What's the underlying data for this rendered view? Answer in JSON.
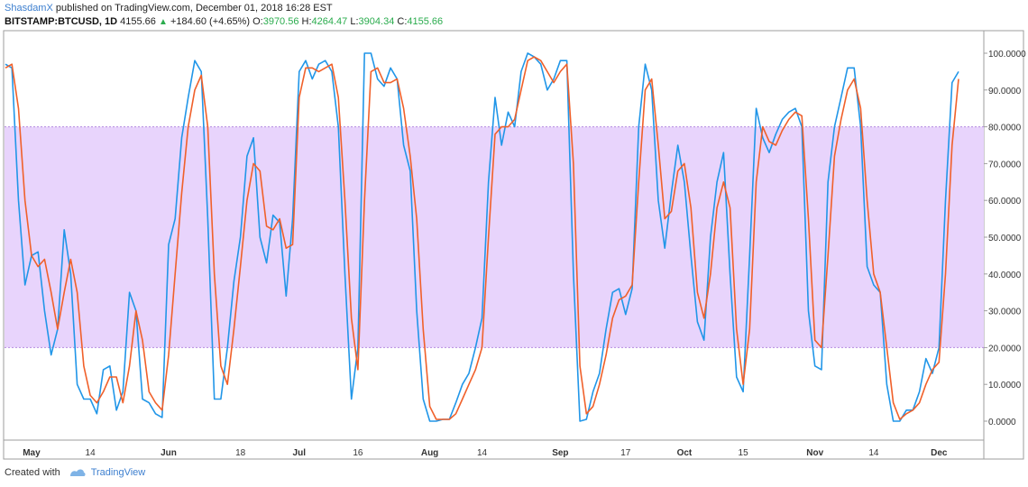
{
  "header": {
    "author": "ShasdamX",
    "published": "published on TradingView.com, December 01, 2018 16:28 EST",
    "symbol": "BITSTAMP:BTCUSD, 1D",
    "last": "4155.66",
    "change_arrow": "▲",
    "change": "+184.60 (+4.65%)",
    "o_label": "O:",
    "o_value": "3970.56",
    "h_label": "H:",
    "h_value": "4264.47",
    "l_label": "L:",
    "l_value": "3904.34",
    "c_label": "C:",
    "c_value": "4155.66"
  },
  "footer": {
    "created_with": "Created with",
    "brand": "TradingView"
  },
  "colors": {
    "k_line": "#2196e8",
    "d_line": "#f0602a",
    "band_fill": "#e8d4fc",
    "band_border": "#b48ae0",
    "accent_green": "#2bac4e",
    "link_blue": "#3d7fcf"
  },
  "chart_data": {
    "type": "line",
    "title": "",
    "xlabel": "",
    "ylabel": "",
    "ylim": [
      -5,
      105
    ],
    "grid": false,
    "band": [
      20,
      80
    ],
    "x_ticks": [
      {
        "day": 4,
        "label": "May"
      },
      {
        "day": 13,
        "label": "14"
      },
      {
        "day": 25,
        "label": "Jun"
      },
      {
        "day": 36,
        "label": "18"
      },
      {
        "day": 45,
        "label": "Jul"
      },
      {
        "day": 54,
        "label": "16"
      },
      {
        "day": 65,
        "label": "Aug"
      },
      {
        "day": 73,
        "label": "14"
      },
      {
        "day": 85,
        "label": "Sep"
      },
      {
        "day": 95,
        "label": "17"
      },
      {
        "day": 104,
        "label": "Oct"
      },
      {
        "day": 113,
        "label": "15"
      },
      {
        "day": 124,
        "label": "Nov"
      },
      {
        "day": 133,
        "label": "14"
      },
      {
        "day": 143,
        "label": "Dec"
      }
    ],
    "y_ticks": [
      {
        "value": 0,
        "label": "0.0000"
      },
      {
        "value": 10,
        "label": "10.0000"
      },
      {
        "value": 20,
        "label": "20.0000"
      },
      {
        "value": 30,
        "label": "30.0000"
      },
      {
        "value": 40,
        "label": "40.0000"
      },
      {
        "value": 50,
        "label": "50.0000"
      },
      {
        "value": 60,
        "label": "60.0000"
      },
      {
        "value": 70,
        "label": "70.0000"
      },
      {
        "value": 80,
        "label": "80.0000"
      },
      {
        "value": 90,
        "label": "90.0000"
      },
      {
        "value": 100,
        "label": "100.0000"
      }
    ],
    "x_range": [
      0,
      146
    ],
    "series": [
      {
        "points": [
          [
            0,
            97
          ],
          [
            1,
            96
          ],
          [
            2,
            60
          ],
          [
            3,
            37
          ],
          [
            4,
            45
          ],
          [
            5,
            46
          ],
          [
            6,
            30
          ],
          [
            7,
            18
          ],
          [
            8,
            25
          ],
          [
            9,
            52
          ],
          [
            10,
            40
          ],
          [
            11,
            10
          ],
          [
            12,
            6
          ],
          [
            13,
            6
          ],
          [
            14,
            2
          ],
          [
            15,
            14
          ],
          [
            16,
            15
          ],
          [
            17,
            3
          ],
          [
            18,
            8
          ],
          [
            19,
            35
          ],
          [
            20,
            30
          ],
          [
            21,
            6
          ],
          [
            22,
            5
          ],
          [
            23,
            2
          ],
          [
            24,
            1
          ],
          [
            25,
            48
          ],
          [
            26,
            55
          ],
          [
            27,
            77
          ],
          [
            28,
            88
          ],
          [
            29,
            98
          ],
          [
            30,
            95
          ],
          [
            31,
            55
          ],
          [
            32,
            6
          ],
          [
            33,
            6
          ],
          [
            34,
            20
          ],
          [
            35,
            38
          ],
          [
            36,
            50
          ],
          [
            37,
            72
          ],
          [
            38,
            77
          ],
          [
            39,
            50
          ],
          [
            40,
            43
          ],
          [
            41,
            56
          ],
          [
            42,
            54
          ],
          [
            43,
            34
          ],
          [
            44,
            55
          ],
          [
            45,
            95
          ],
          [
            46,
            98
          ],
          [
            47,
            93
          ],
          [
            48,
            97
          ],
          [
            49,
            98
          ],
          [
            50,
            95
          ],
          [
            51,
            80
          ],
          [
            52,
            40
          ],
          [
            53,
            6
          ],
          [
            54,
            20
          ],
          [
            55,
            100
          ],
          [
            56,
            100
          ],
          [
            57,
            93
          ],
          [
            58,
            91
          ],
          [
            59,
            96
          ],
          [
            60,
            93
          ],
          [
            61,
            75
          ],
          [
            62,
            68
          ],
          [
            63,
            30
          ],
          [
            64,
            6
          ],
          [
            65,
            0
          ],
          [
            66,
            0
          ],
          [
            67,
            0.5
          ],
          [
            68,
            0.5
          ],
          [
            69,
            5
          ],
          [
            70,
            10
          ],
          [
            71,
            13
          ],
          [
            72,
            20
          ],
          [
            73,
            28
          ],
          [
            74,
            65
          ],
          [
            75,
            88
          ],
          [
            76,
            75
          ],
          [
            77,
            84
          ],
          [
            78,
            80
          ],
          [
            79,
            95
          ],
          [
            80,
            100
          ],
          [
            81,
            99
          ],
          [
            82,
            97
          ],
          [
            83,
            90
          ],
          [
            84,
            93
          ],
          [
            85,
            98
          ],
          [
            86,
            98
          ],
          [
            87,
            40
          ],
          [
            88,
            0
          ],
          [
            89,
            0.5
          ],
          [
            90,
            8
          ],
          [
            91,
            13
          ],
          [
            92,
            25
          ],
          [
            93,
            35
          ],
          [
            94,
            36
          ],
          [
            95,
            29
          ],
          [
            96,
            36
          ],
          [
            97,
            80
          ],
          [
            98,
            97
          ],
          [
            99,
            90
          ],
          [
            100,
            60
          ],
          [
            101,
            47
          ],
          [
            102,
            62
          ],
          [
            103,
            75
          ],
          [
            104,
            65
          ],
          [
            105,
            45
          ],
          [
            106,
            27
          ],
          [
            107,
            22
          ],
          [
            108,
            50
          ],
          [
            109,
            65
          ],
          [
            110,
            73
          ],
          [
            111,
            40
          ],
          [
            112,
            12
          ],
          [
            113,
            8
          ],
          [
            114,
            45
          ],
          [
            115,
            85
          ],
          [
            116,
            77
          ],
          [
            117,
            73
          ],
          [
            118,
            78
          ],
          [
            119,
            82
          ],
          [
            120,
            84
          ],
          [
            121,
            85
          ],
          [
            122,
            80
          ],
          [
            123,
            30
          ],
          [
            124,
            15
          ],
          [
            125,
            14
          ],
          [
            126,
            65
          ],
          [
            127,
            80
          ],
          [
            128,
            88
          ],
          [
            129,
            96
          ],
          [
            130,
            96
          ],
          [
            131,
            80
          ],
          [
            132,
            42
          ],
          [
            133,
            37
          ],
          [
            134,
            35
          ],
          [
            135,
            10
          ],
          [
            136,
            0
          ],
          [
            137,
            0
          ],
          [
            138,
            3
          ],
          [
            139,
            3
          ],
          [
            140,
            8
          ],
          [
            141,
            17
          ],
          [
            142,
            13
          ],
          [
            143,
            20
          ],
          [
            144,
            60
          ],
          [
            145,
            92
          ],
          [
            146,
            95
          ]
        ]
      },
      {
        "points": [
          [
            0,
            96
          ],
          [
            1,
            97
          ],
          [
            2,
            85
          ],
          [
            3,
            60
          ],
          [
            4,
            45
          ],
          [
            5,
            42
          ],
          [
            6,
            44
          ],
          [
            7,
            35
          ],
          [
            8,
            25
          ],
          [
            9,
            35
          ],
          [
            10,
            44
          ],
          [
            11,
            35
          ],
          [
            12,
            15
          ],
          [
            13,
            7
          ],
          [
            14,
            5
          ],
          [
            15,
            8
          ],
          [
            16,
            12
          ],
          [
            17,
            12
          ],
          [
            18,
            5
          ],
          [
            19,
            15
          ],
          [
            20,
            30
          ],
          [
            21,
            22
          ],
          [
            22,
            8
          ],
          [
            23,
            5
          ],
          [
            24,
            3
          ],
          [
            25,
            18
          ],
          [
            26,
            40
          ],
          [
            27,
            62
          ],
          [
            28,
            80
          ],
          [
            29,
            90
          ],
          [
            30,
            94
          ],
          [
            31,
            80
          ],
          [
            32,
            40
          ],
          [
            33,
            15
          ],
          [
            34,
            10
          ],
          [
            35,
            25
          ],
          [
            36,
            42
          ],
          [
            37,
            60
          ],
          [
            38,
            70
          ],
          [
            39,
            68
          ],
          [
            40,
            53
          ],
          [
            41,
            52
          ],
          [
            42,
            55
          ],
          [
            43,
            47
          ],
          [
            44,
            48
          ],
          [
            45,
            88
          ],
          [
            46,
            96
          ],
          [
            47,
            96
          ],
          [
            48,
            95
          ],
          [
            49,
            96
          ],
          [
            50,
            97
          ],
          [
            51,
            88
          ],
          [
            52,
            60
          ],
          [
            53,
            28
          ],
          [
            54,
            14
          ],
          [
            55,
            60
          ],
          [
            56,
            95
          ],
          [
            57,
            96
          ],
          [
            58,
            92
          ],
          [
            59,
            92
          ],
          [
            60,
            93
          ],
          [
            61,
            85
          ],
          [
            62,
            72
          ],
          [
            63,
            55
          ],
          [
            64,
            25
          ],
          [
            65,
            4
          ],
          [
            66,
            0.5
          ],
          [
            67,
            0.5
          ],
          [
            68,
            0.5
          ],
          [
            69,
            2
          ],
          [
            70,
            6
          ],
          [
            71,
            10
          ],
          [
            72,
            14
          ],
          [
            73,
            20
          ],
          [
            74,
            50
          ],
          [
            75,
            78
          ],
          [
            76,
            80
          ],
          [
            77,
            80
          ],
          [
            78,
            82
          ],
          [
            79,
            90
          ],
          [
            80,
            98
          ],
          [
            81,
            99
          ],
          [
            82,
            98
          ],
          [
            83,
            95
          ],
          [
            84,
            92
          ],
          [
            85,
            95
          ],
          [
            86,
            97
          ],
          [
            87,
            70
          ],
          [
            88,
            15
          ],
          [
            89,
            2
          ],
          [
            90,
            4
          ],
          [
            91,
            10
          ],
          [
            92,
            18
          ],
          [
            93,
            28
          ],
          [
            94,
            33
          ],
          [
            95,
            34
          ],
          [
            96,
            37
          ],
          [
            97,
            65
          ],
          [
            98,
            90
          ],
          [
            99,
            93
          ],
          [
            100,
            75
          ],
          [
            101,
            55
          ],
          [
            102,
            57
          ],
          [
            103,
            68
          ],
          [
            104,
            70
          ],
          [
            105,
            58
          ],
          [
            106,
            35
          ],
          [
            107,
            28
          ],
          [
            108,
            40
          ],
          [
            109,
            58
          ],
          [
            110,
            65
          ],
          [
            111,
            58
          ],
          [
            112,
            25
          ],
          [
            113,
            10
          ],
          [
            114,
            25
          ],
          [
            115,
            65
          ],
          [
            116,
            80
          ],
          [
            117,
            76
          ],
          [
            118,
            75
          ],
          [
            119,
            79
          ],
          [
            120,
            82
          ],
          [
            121,
            84
          ],
          [
            122,
            83
          ],
          [
            123,
            55
          ],
          [
            124,
            22
          ],
          [
            125,
            20
          ],
          [
            126,
            45
          ],
          [
            127,
            72
          ],
          [
            128,
            82
          ],
          [
            129,
            90
          ],
          [
            130,
            93
          ],
          [
            131,
            85
          ],
          [
            132,
            60
          ],
          [
            133,
            40
          ],
          [
            134,
            35
          ],
          [
            135,
            20
          ],
          [
            136,
            5
          ],
          [
            137,
            0.5
          ],
          [
            138,
            2
          ],
          [
            139,
            3
          ],
          [
            140,
            5
          ],
          [
            141,
            10
          ],
          [
            142,
            14
          ],
          [
            143,
            16
          ],
          [
            144,
            40
          ],
          [
            145,
            75
          ],
          [
            146,
            93
          ]
        ]
      }
    ]
  }
}
